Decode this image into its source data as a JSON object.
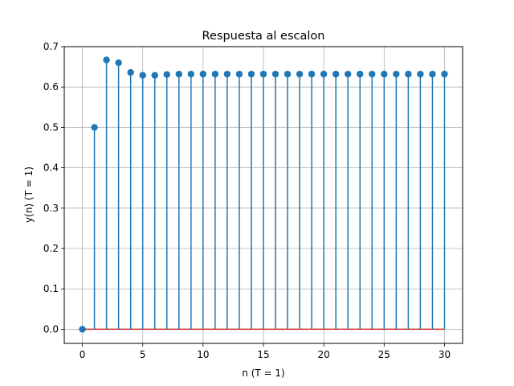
{
  "chart_data": {
    "type": "stem",
    "title": "Respuesta al escalon",
    "xlabel": "n (T = 1)",
    "ylabel": "y(n) (T = 1)",
    "xlim": [
      -1.5,
      31.5
    ],
    "ylim": [
      -0.035,
      0.7
    ],
    "xticks": [
      0,
      5,
      10,
      15,
      20,
      25,
      30
    ],
    "xtick_labels": [
      "0",
      "5",
      "10",
      "15",
      "20",
      "25",
      "30"
    ],
    "yticks": [
      0.0,
      0.1,
      0.2,
      0.3,
      0.4,
      0.5,
      0.6,
      0.7
    ],
    "ytick_labels": [
      "0.0",
      "0.1",
      "0.2",
      "0.3",
      "0.4",
      "0.5",
      "0.6",
      "0.7"
    ],
    "grid": true,
    "x": [
      0,
      1,
      2,
      3,
      4,
      5,
      6,
      7,
      8,
      9,
      10,
      11,
      12,
      13,
      14,
      15,
      16,
      17,
      18,
      19,
      20,
      21,
      22,
      23,
      24,
      25,
      26,
      27,
      28,
      29,
      30
    ],
    "values": [
      0.0,
      0.5,
      0.667,
      0.66,
      0.636,
      0.629,
      0.629,
      0.631,
      0.632,
      0.632,
      0.632,
      0.632,
      0.632,
      0.632,
      0.632,
      0.632,
      0.632,
      0.632,
      0.632,
      0.632,
      0.632,
      0.632,
      0.632,
      0.632,
      0.632,
      0.632,
      0.632,
      0.632,
      0.632,
      0.632,
      0.632
    ],
    "colors": {
      "stem": "#1f77b4",
      "marker": "#1f77b4",
      "baseline": "#d62728",
      "grid": "#b0b0b0",
      "axes": "#000000"
    }
  }
}
